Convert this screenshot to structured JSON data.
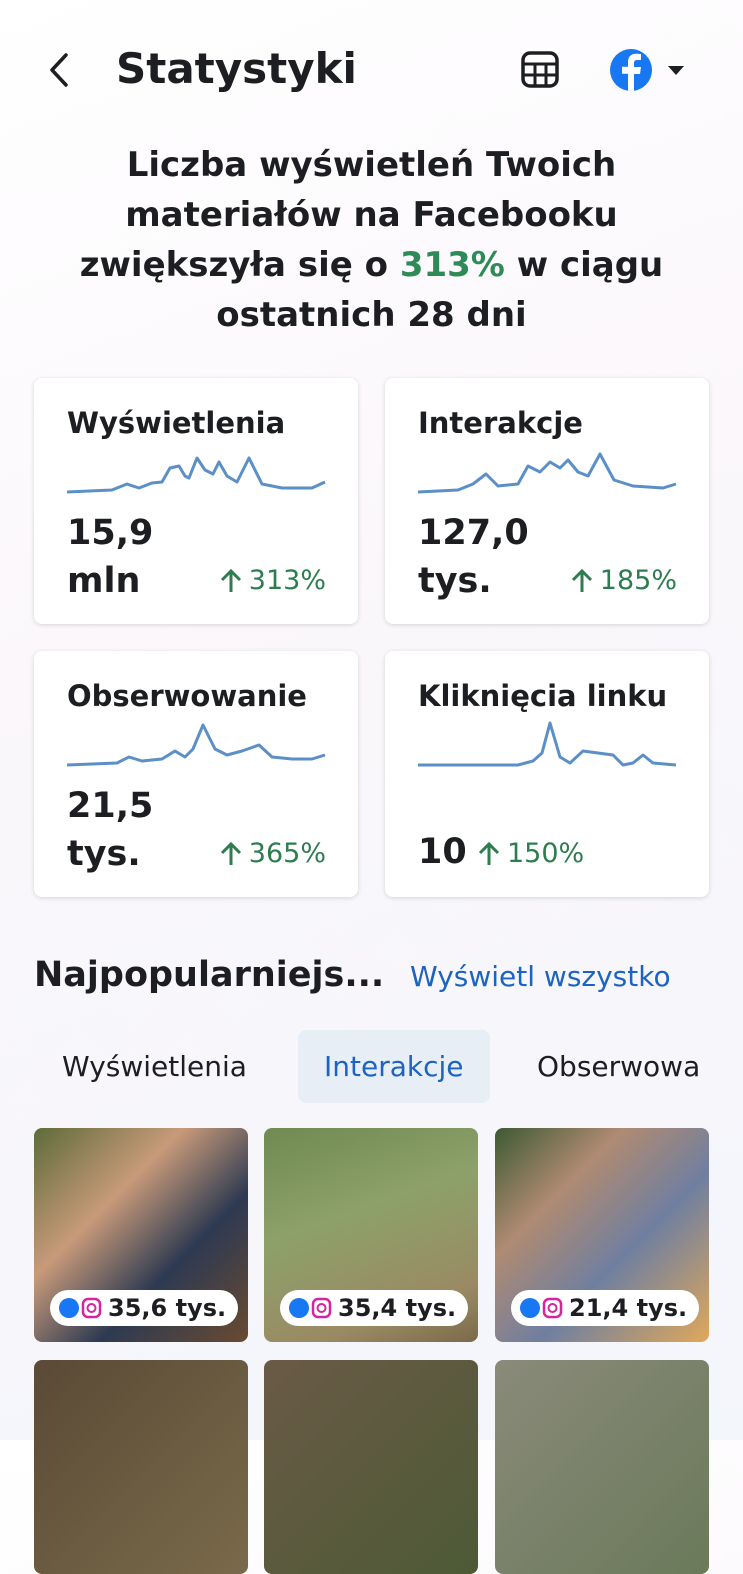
{
  "header": {
    "title": "Statystyki"
  },
  "summary": {
    "text_before": "Liczba wyświetleń Twoich materiałów na Facebooku zwiększyła się o",
    "highlight": "313%",
    "text_after": "w ciągu ostatnich 28 dni"
  },
  "cards": [
    {
      "label": "Wyświetlenia",
      "value": "15,9",
      "unit": "mln",
      "change": "313%"
    },
    {
      "label": "Interakcje",
      "value": "127,0",
      "unit": "tys.",
      "change": "185%"
    },
    {
      "label": "Obserwowanie",
      "value": "21,5",
      "unit": "tys.",
      "change": "365%"
    },
    {
      "label": "Kliknięcia linku",
      "value": "10",
      "change": "150%"
    }
  ],
  "section": {
    "title": "Najpopularniejs...",
    "link": "Wyświetl wszystko"
  },
  "tabs": [
    "Wyświetlenia",
    "Interakcje",
    "Obserwowa"
  ],
  "posts": [
    {
      "count": "35,6 tys."
    },
    {
      "count": "35,4 tys."
    },
    {
      "count": "21,4 tys."
    }
  ]
}
